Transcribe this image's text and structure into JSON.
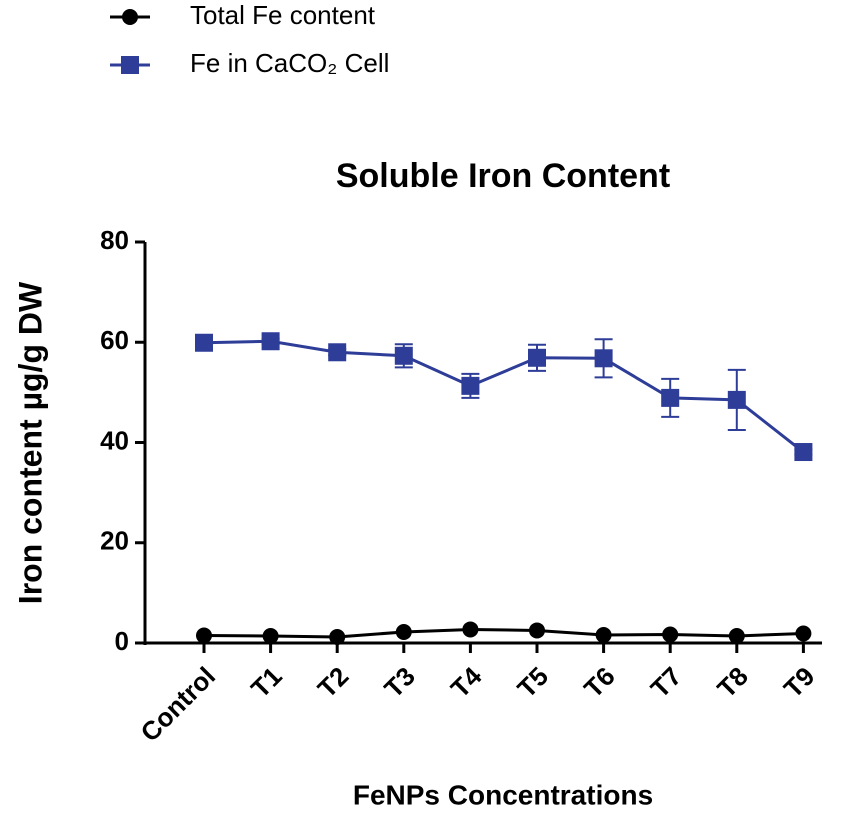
{
  "chart_data": {
    "type": "line",
    "title": "Soluble Iron Content",
    "x_label": "FeNPs Concentrations",
    "y_label": "Iron content µg/g DW",
    "categories": [
      "Control",
      "T1",
      "T2",
      "T3",
      "T4",
      "T5",
      "T6",
      "T7",
      "T8",
      "T9"
    ],
    "series": [
      {
        "name": "Total Fe content",
        "color": "#000000",
        "marker": "circle",
        "values": [
          1.5,
          1.4,
          1.2,
          2.2,
          2.7,
          2.5,
          1.6,
          1.7,
          1.4,
          1.9
        ]
      },
      {
        "name": "Fe in CaCO₂ Cell",
        "color": "#2e3d98",
        "marker": "square",
        "values": [
          59.9,
          60.2,
          58.0,
          57.3,
          51.3,
          56.9,
          56.8,
          48.9,
          48.5,
          38.1
        ],
        "errors": [
          0.5,
          0.5,
          0.6,
          2.3,
          2.4,
          2.6,
          3.8,
          3.8,
          6.0,
          0.5
        ]
      }
    ],
    "ylim": [
      0,
      80
    ],
    "yticks": [
      0,
      20,
      40,
      60,
      80
    ],
    "grid": false,
    "legend": "top-left"
  }
}
